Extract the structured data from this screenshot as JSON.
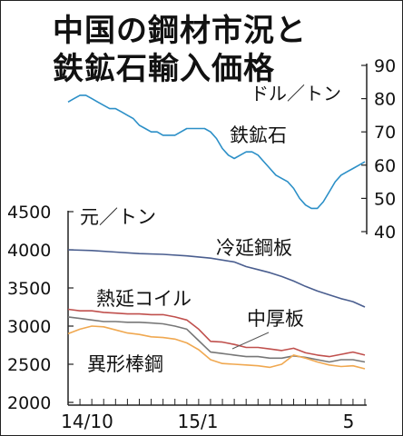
{
  "chart_data": {
    "type": "line",
    "title_lines": [
      "中国の鋼材市況と",
      "鉄鉱石輸入価格"
    ],
    "months": [
      "14/10",
      "15/1",
      "5"
    ],
    "left_axis": {
      "unit": "元／トン",
      "ylim": [
        2000,
        4500
      ],
      "ticks": [
        "4500",
        "4000",
        "3500",
        "3000",
        "2500",
        "2000"
      ]
    },
    "right_axis": {
      "unit": "ドル／トン",
      "ylim": [
        40,
        90
      ],
      "ticks": [
        "90",
        "80",
        "70",
        "60",
        "50",
        "40"
      ]
    },
    "series": [
      {
        "name": "鉄鉱石",
        "axis": "right",
        "color": "#2b8fc7",
        "x": [
          0,
          0.5,
          1,
          1.5,
          2,
          2.5,
          3,
          3.5,
          4,
          4.5,
          5,
          5.5,
          6,
          6.5,
          7,
          7.5,
          8,
          8.5,
          9,
          9.5,
          10,
          10.5,
          11,
          11.5,
          12,
          12.5,
          13,
          13.5,
          14,
          14.5,
          15,
          15.5,
          16,
          16.5,
          17,
          17.5,
          18,
          18.5,
          19,
          19.5,
          20,
          20.5,
          21,
          21.5,
          22,
          22.5,
          23,
          23.5,
          24,
          24.5,
          25
        ],
        "values": [
          79,
          80,
          81,
          81,
          80,
          79,
          78,
          77,
          77,
          76,
          75,
          74,
          72,
          71,
          70,
          70,
          69,
          69,
          69,
          70,
          71,
          71,
          71,
          71,
          70,
          68,
          65,
          63,
          62,
          63,
          64,
          64,
          63,
          61,
          59,
          57,
          56,
          55,
          53,
          50,
          48,
          47,
          47,
          49,
          52,
          55,
          57,
          58,
          59,
          60,
          61
        ]
      },
      {
        "name": "冷延鋼板",
        "axis": "left",
        "color": "#4a5e8f",
        "x": [
          0,
          2,
          4,
          6,
          8,
          10,
          12,
          14,
          15,
          16,
          17,
          18,
          19,
          20,
          21,
          22,
          23,
          24,
          25
        ],
        "values": [
          4000,
          3990,
          3970,
          3950,
          3940,
          3920,
          3890,
          3840,
          3780,
          3740,
          3700,
          3650,
          3590,
          3520,
          3460,
          3410,
          3360,
          3320,
          3250
        ]
      },
      {
        "name": "熱延コイル",
        "axis": "left",
        "color": "#c0504d",
        "x": [
          0,
          1,
          2,
          3,
          4,
          5,
          6,
          7,
          8,
          9,
          10,
          11,
          12,
          13,
          14,
          15,
          16,
          17,
          18,
          19,
          20,
          21,
          22,
          23,
          24,
          25
        ],
        "values": [
          3220,
          3200,
          3200,
          3180,
          3170,
          3160,
          3160,
          3150,
          3150,
          3120,
          3080,
          2960,
          2800,
          2790,
          2760,
          2720,
          2720,
          2700,
          2680,
          2710,
          2650,
          2620,
          2600,
          2630,
          2660,
          2620
        ]
      },
      {
        "name": "中厚板",
        "axis": "left",
        "color": "#777777",
        "x": [
          0,
          1,
          2,
          3,
          4,
          5,
          6,
          7,
          8,
          9,
          10,
          11,
          12,
          13,
          14,
          15,
          16,
          17,
          18,
          19,
          20,
          21,
          22,
          23,
          24,
          25
        ],
        "values": [
          3120,
          3100,
          3080,
          3060,
          3060,
          3050,
          3050,
          3040,
          3030,
          3000,
          2960,
          2810,
          2660,
          2640,
          2620,
          2600,
          2600,
          2580,
          2580,
          2610,
          2590,
          2560,
          2530,
          2560,
          2560,
          2530
        ]
      },
      {
        "name": "異形棒鋼",
        "axis": "left",
        "color": "#f0a850",
        "x": [
          0,
          1,
          2,
          3,
          4,
          5,
          6,
          7,
          8,
          9,
          10,
          11,
          12,
          13,
          14,
          15,
          16,
          17,
          18,
          19,
          20,
          21,
          22,
          23,
          24,
          25
        ],
        "values": [
          2900,
          2960,
          3000,
          2990,
          2950,
          2910,
          2890,
          2860,
          2850,
          2830,
          2780,
          2690,
          2560,
          2510,
          2500,
          2490,
          2480,
          2460,
          2500,
          2620,
          2580,
          2530,
          2490,
          2470,
          2480,
          2440
        ]
      }
    ],
    "annotations": {
      "leader_line_target": "中厚板"
    },
    "grid": false
  }
}
